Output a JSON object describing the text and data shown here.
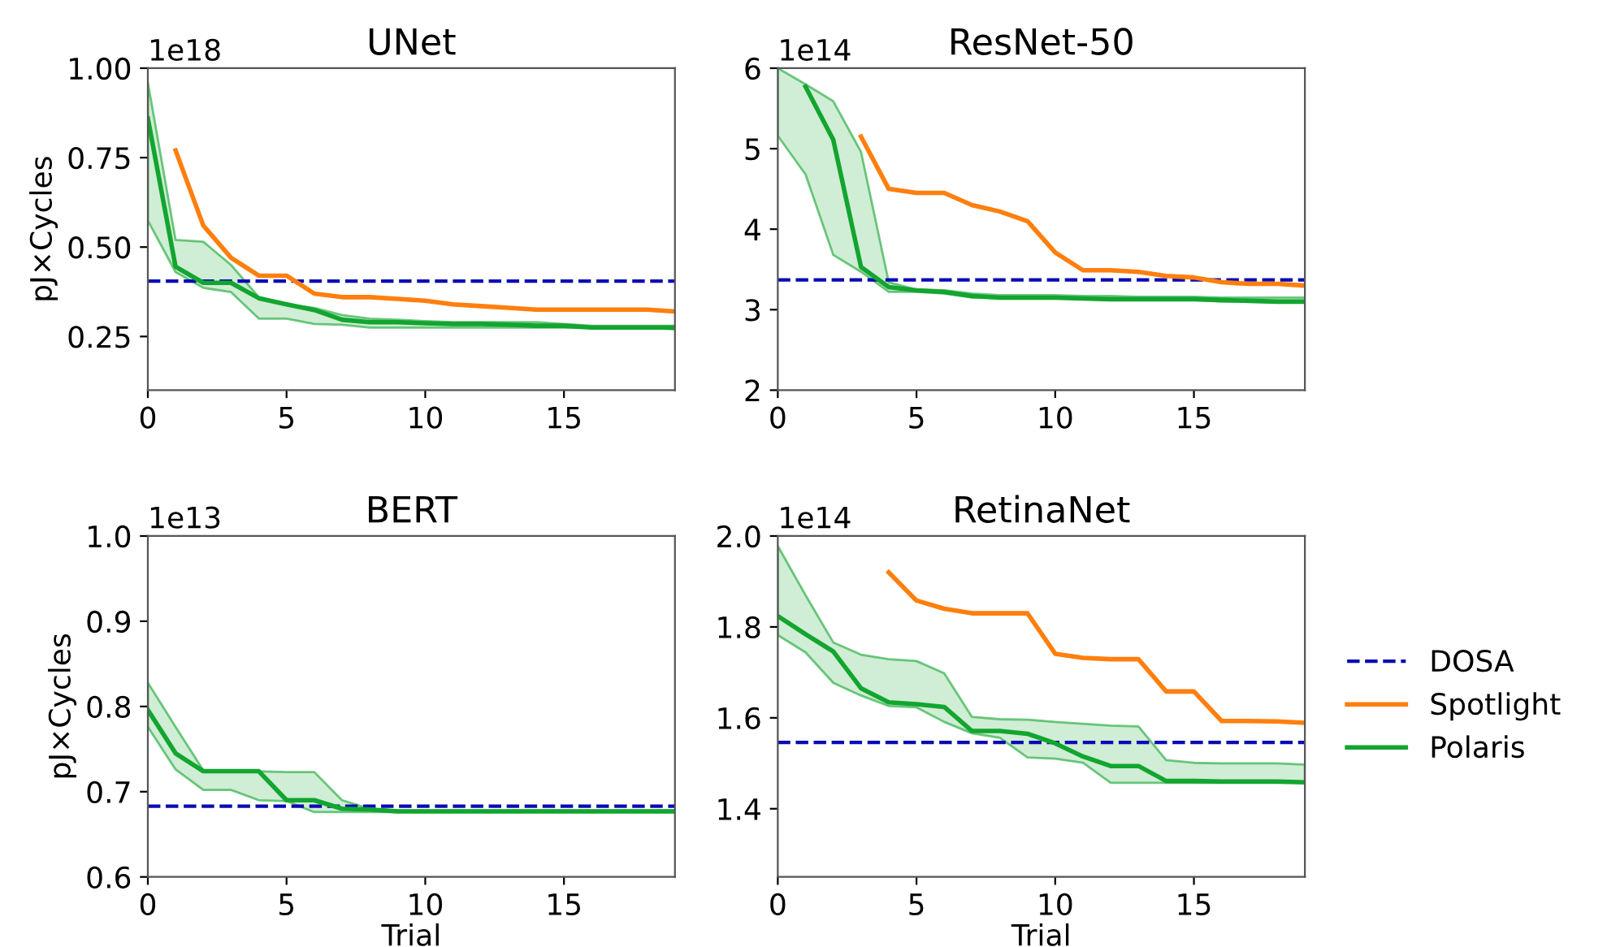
{
  "chart_data": [
    {
      "type": "line",
      "title": "UNet",
      "ylabel": "pJ×Cycles",
      "annotations": [
        "1e18"
      ],
      "x": [
        0,
        1,
        2,
        3,
        4,
        5,
        6,
        7,
        8,
        9,
        10,
        11,
        12,
        13,
        14,
        15,
        16,
        17,
        18,
        19
      ],
      "xlim": [
        0,
        19
      ],
      "xticks": [
        0,
        5,
        10,
        15
      ],
      "ylim": [
        0.1,
        1.0
      ],
      "yticks": [
        {
          "value": 0.25,
          "label": "0.25"
        },
        {
          "value": 0.5,
          "label": "0.50"
        },
        {
          "value": 0.75,
          "label": "0.75"
        },
        {
          "value": 1.0,
          "label": "1.00"
        }
      ],
      "tick_labels": true,
      "ref_lines": [
        {
          "axis": "y",
          "value": 0.405,
          "color": "#0a0ab4",
          "line_style": "dashed"
        }
      ],
      "series": [
        {
          "color": "#ff7f0e",
          "values": [
            null,
            0.77,
            0.56,
            0.47,
            0.42,
            0.42,
            0.37,
            0.36,
            0.36,
            0.355,
            0.35,
            0.34,
            0.335,
            0.33,
            0.325,
            0.325,
            0.325,
            0.325,
            0.325,
            0.32
          ]
        },
        {
          "color": "#12a52f",
          "values": [
            0.86,
            0.445,
            0.4,
            0.4,
            0.357,
            0.34,
            0.324,
            0.297,
            0.29,
            0.29,
            0.287,
            0.285,
            0.285,
            0.283,
            0.28,
            0.28,
            0.275,
            0.275,
            0.275,
            0.275
          ],
          "upper": [
            0.96,
            0.52,
            0.515,
            0.45,
            0.36,
            0.34,
            0.33,
            0.31,
            0.3,
            0.297,
            0.293,
            0.29,
            0.29,
            0.29,
            0.29,
            0.285,
            0.28,
            0.28,
            0.28,
            0.28
          ],
          "lower": [
            0.574,
            0.43,
            0.386,
            0.374,
            0.3,
            0.3,
            0.285,
            0.283,
            0.275,
            0.275,
            0.275,
            0.275,
            0.275,
            0.275,
            0.275,
            0.275,
            0.275,
            0.275,
            0.275,
            0.27
          ]
        }
      ]
    },
    {
      "type": "line",
      "title": "ResNet-50",
      "annotations": [
        "1e14"
      ],
      "x": [
        0,
        1,
        2,
        3,
        4,
        5,
        6,
        7,
        8,
        9,
        10,
        11,
        12,
        13,
        14,
        15,
        16,
        17,
        18,
        19
      ],
      "xlim": [
        0,
        19
      ],
      "xticks": [
        0,
        5,
        10,
        15
      ],
      "ylim": [
        2,
        6
      ],
      "yticks": [
        2,
        3,
        4,
        5,
        6
      ],
      "tick_labels": true,
      "ref_lines": [
        {
          "axis": "y",
          "value": 3.37,
          "color": "#0a0ab4",
          "line_style": "dashed"
        }
      ],
      "series": [
        {
          "color": "#ff7f0e",
          "values": [
            null,
            null,
            null,
            5.15,
            4.5,
            4.45,
            4.45,
            4.3,
            4.22,
            4.1,
            3.71,
            3.49,
            3.49,
            3.47,
            3.42,
            3.4,
            3.34,
            3.32,
            3.32,
            3.3
          ]
        },
        {
          "color": "#12a52f",
          "values": [
            null,
            5.77,
            5.11,
            3.53,
            3.28,
            3.24,
            3.22,
            3.17,
            3.15,
            3.15,
            3.15,
            3.14,
            3.13,
            3.13,
            3.13,
            3.13,
            3.12,
            3.11,
            3.1,
            3.1
          ],
          "upper": [
            6.0,
            5.8,
            5.59,
            4.96,
            3.34,
            3.25,
            3.24,
            3.2,
            3.18,
            3.18,
            3.18,
            3.17,
            3.17,
            3.16,
            3.16,
            3.16,
            3.15,
            3.15,
            3.15,
            3.15
          ],
          "lower": [
            5.16,
            4.68,
            3.68,
            3.47,
            3.22,
            3.22,
            3.2,
            3.15,
            3.15,
            3.15,
            3.14,
            3.13,
            3.12,
            3.12,
            3.12,
            3.12,
            3.1,
            3.1,
            3.1,
            3.1
          ]
        }
      ]
    },
    {
      "type": "line",
      "title": "BERT",
      "ylabel": "pJ×Cycles",
      "xlabel": "Trial",
      "annotations": [
        "1e13"
      ],
      "x": [
        0,
        1,
        2,
        3,
        4,
        5,
        6,
        7,
        8,
        9,
        10,
        11,
        12,
        13,
        14,
        15,
        16,
        17,
        18,
        19
      ],
      "xlim": [
        0,
        19
      ],
      "xticks": [
        0,
        5,
        10,
        15
      ],
      "ylim": [
        0.6,
        1.0
      ],
      "yticks": [
        0.6,
        0.7,
        0.8,
        0.9,
        {
          "value": 1.0,
          "label": "1.0"
        }
      ],
      "tick_labels": true,
      "ref_lines": [
        {
          "axis": "y",
          "value": 0.683,
          "color": "#0a0ab4",
          "line_style": "dashed"
        }
      ],
      "series": [
        {
          "color": "#12a52f",
          "values": [
            0.796,
            0.745,
            0.724,
            0.724,
            0.724,
            0.69,
            0.69,
            0.68,
            0.679,
            0.677,
            0.677,
            0.677,
            0.677,
            0.677,
            0.677,
            0.677,
            0.677,
            0.677,
            0.677,
            0.677
          ],
          "upper": [
            0.828,
            0.776,
            0.725,
            0.725,
            0.724,
            0.723,
            0.723,
            0.69,
            0.68,
            0.678,
            0.678,
            0.678,
            0.678,
            0.678,
            0.678,
            0.678,
            0.678,
            0.678,
            0.678,
            0.678
          ],
          "lower": [
            0.776,
            0.726,
            0.702,
            0.702,
            0.69,
            0.689,
            0.676,
            0.676,
            0.676,
            0.676,
            0.676,
            0.676,
            0.676,
            0.676,
            0.676,
            0.676,
            0.676,
            0.676,
            0.676,
            0.676
          ]
        }
      ]
    },
    {
      "type": "line",
      "title": "RetinaNet",
      "xlabel": "Trial",
      "annotations": [
        "1e14"
      ],
      "x": [
        0,
        1,
        2,
        3,
        4,
        5,
        6,
        7,
        8,
        9,
        10,
        11,
        12,
        13,
        14,
        15,
        16,
        17,
        18,
        19
      ],
      "xlim": [
        0,
        19
      ],
      "xticks": [
        0,
        5,
        10,
        15
      ],
      "ylim": [
        1.25,
        2.0
      ],
      "yticks": [
        1.4,
        1.6,
        1.8,
        {
          "value": 2.0,
          "label": "2.0"
        }
      ],
      "tick_labels": true,
      "legend": "right",
      "ref_lines": [
        {
          "axis": "y",
          "value": 1.546,
          "label": "DOSA",
          "color": "#0a0ab4",
          "line_style": "dashed"
        }
      ],
      "series": [
        {
          "name": "Spotlight",
          "color": "#ff7f0e",
          "values": [
            null,
            null,
            null,
            null,
            1.92,
            1.858,
            1.84,
            1.83,
            1.83,
            1.83,
            1.741,
            1.732,
            1.729,
            1.729,
            1.658,
            1.658,
            1.593,
            1.593,
            1.592,
            1.589
          ]
        },
        {
          "name": "Polaris",
          "color": "#12a52f",
          "values": [
            1.824,
            1.784,
            1.746,
            1.665,
            1.634,
            1.63,
            1.624,
            1.571,
            1.571,
            1.565,
            1.544,
            1.515,
            1.494,
            1.494,
            1.461,
            1.461,
            1.46,
            1.46,
            1.46,
            1.458
          ],
          "upper": [
            1.978,
            1.87,
            1.766,
            1.739,
            1.729,
            1.725,
            1.698,
            1.602,
            1.597,
            1.596,
            1.591,
            1.587,
            1.583,
            1.581,
            1.507,
            1.501,
            1.5,
            1.5,
            1.5,
            1.497
          ],
          "lower": [
            1.782,
            1.744,
            1.677,
            1.649,
            1.626,
            1.623,
            1.591,
            1.566,
            1.556,
            1.513,
            1.51,
            1.501,
            1.457,
            1.457,
            1.457,
            1.457,
            1.457,
            1.457,
            1.457,
            1.457
          ]
        }
      ]
    }
  ]
}
